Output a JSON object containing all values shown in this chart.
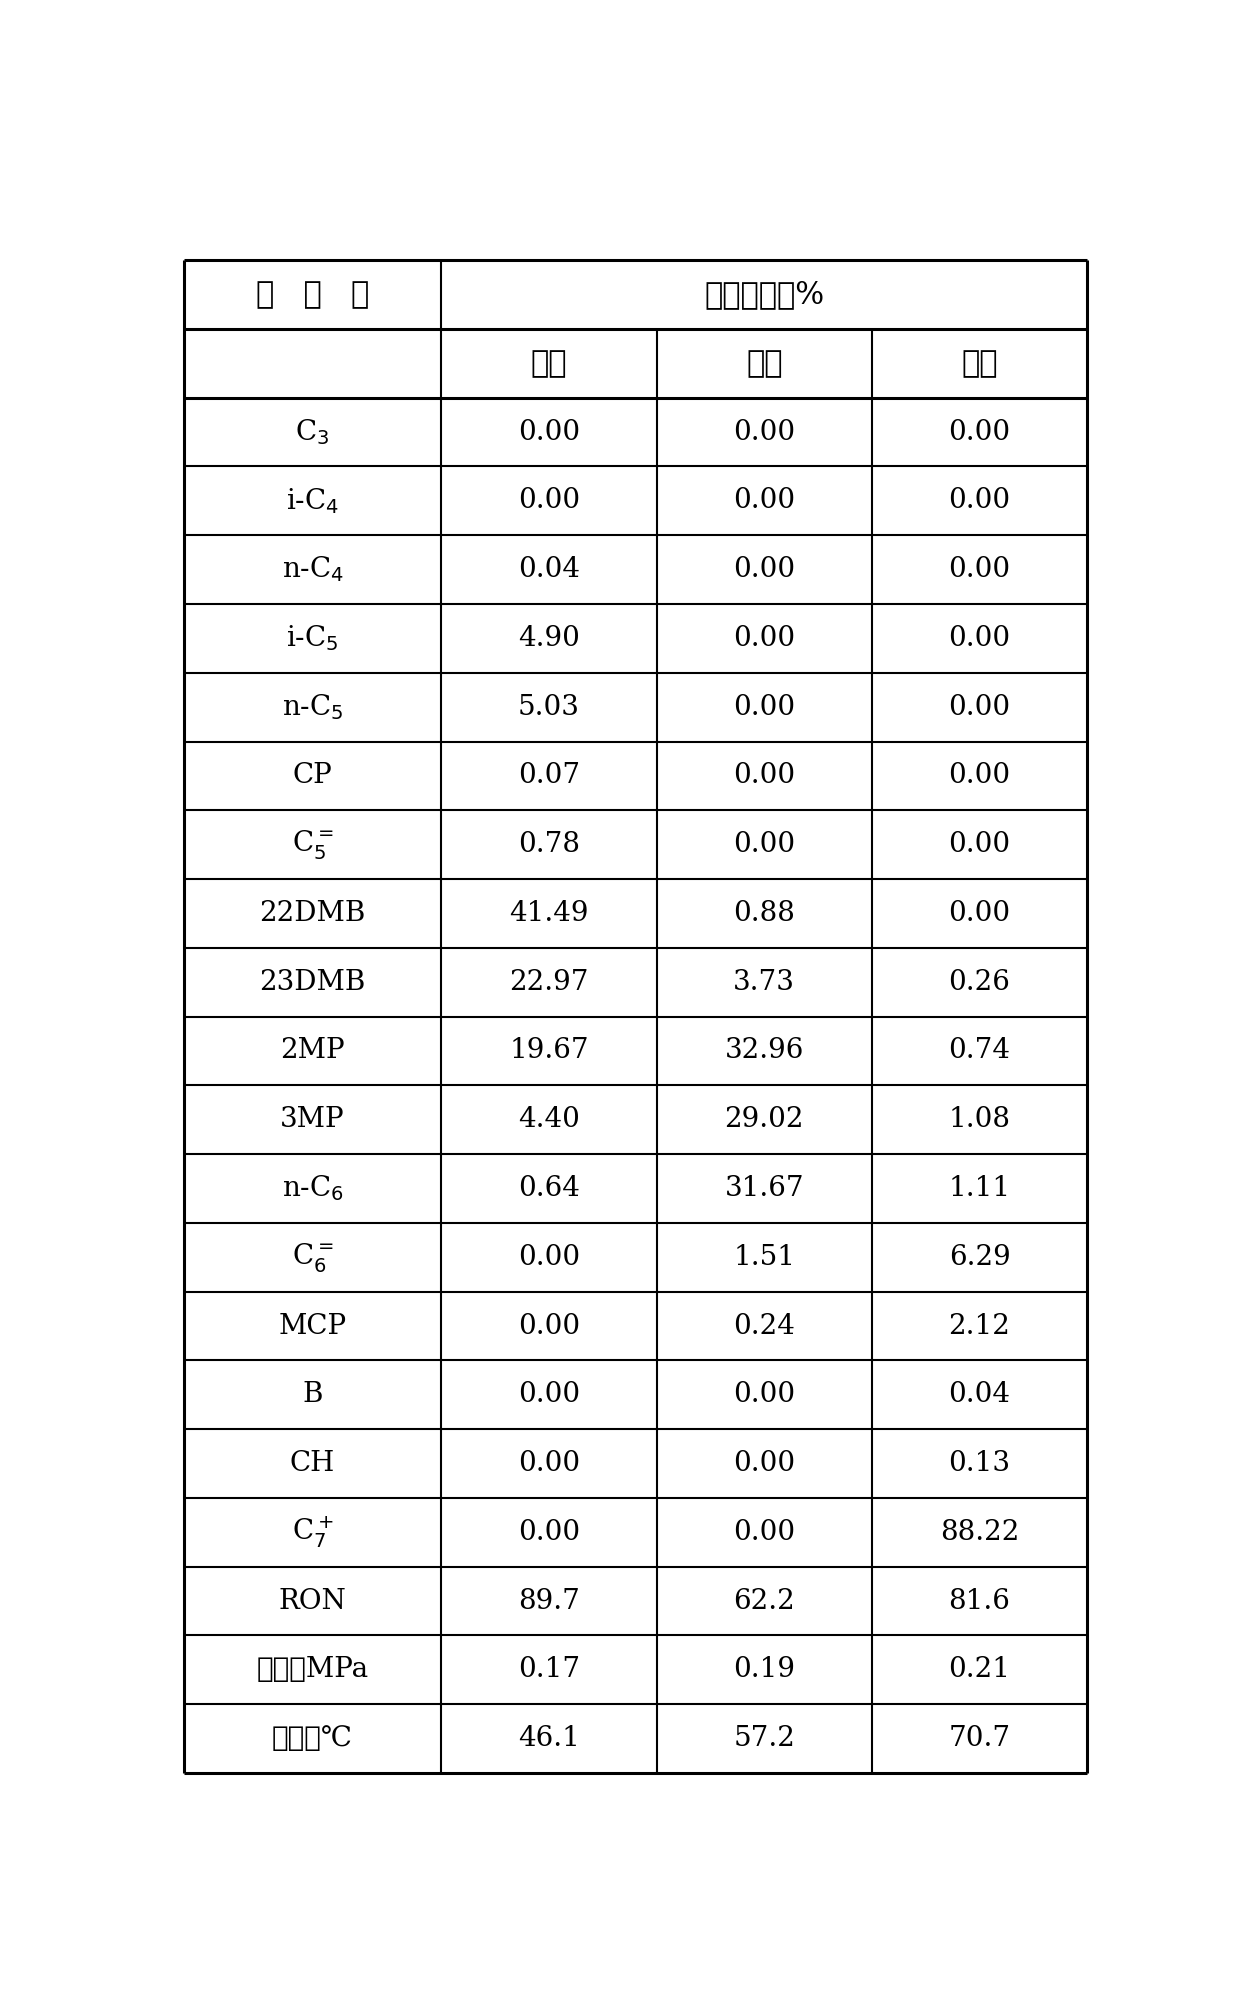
{
  "header_col": "烃   组   分",
  "header_group": "含量，质量%",
  "subheaders": [
    "塔顶",
    "侧线",
    "塔底"
  ],
  "rows": [
    {
      "label": "C_3",
      "values": [
        "0.00",
        "0.00",
        "0.00"
      ],
      "sub": "3",
      "sup": "",
      "prefix": "C",
      "suffix": ""
    },
    {
      "label": "i-C_4",
      "values": [
        "0.00",
        "0.00",
        "0.00"
      ],
      "sub": "4",
      "sup": "",
      "prefix": "i-C",
      "suffix": ""
    },
    {
      "label": "n-C_4",
      "values": [
        "0.04",
        "0.00",
        "0.00"
      ],
      "sub": "4",
      "sup": "",
      "prefix": "n-C",
      "suffix": ""
    },
    {
      "label": "i-C_5",
      "values": [
        "4.90",
        "0.00",
        "0.00"
      ],
      "sub": "5",
      "sup": "",
      "prefix": "i-C",
      "suffix": ""
    },
    {
      "label": "n-C_5",
      "values": [
        "5.03",
        "0.00",
        "0.00"
      ],
      "sub": "5",
      "sup": "",
      "prefix": "n-C",
      "suffix": ""
    },
    {
      "label": "CP",
      "values": [
        "0.07",
        "0.00",
        "0.00"
      ],
      "sub": "",
      "sup": "",
      "prefix": "CP",
      "suffix": ""
    },
    {
      "label": "C_5=",
      "values": [
        "0.78",
        "0.00",
        "0.00"
      ],
      "sub": "5",
      "sup": "=",
      "prefix": "C",
      "suffix": ""
    },
    {
      "label": "22DMB",
      "values": [
        "41.49",
        "0.88",
        "0.00"
      ],
      "sub": "",
      "sup": "",
      "prefix": "22DMB",
      "suffix": ""
    },
    {
      "label": "23DMB",
      "values": [
        "22.97",
        "3.73",
        "0.26"
      ],
      "sub": "",
      "sup": "",
      "prefix": "23DMB",
      "suffix": ""
    },
    {
      "label": "2MP",
      "values": [
        "19.67",
        "32.96",
        "0.74"
      ],
      "sub": "",
      "sup": "",
      "prefix": "2MP",
      "suffix": ""
    },
    {
      "label": "3MP",
      "values": [
        "4.40",
        "29.02",
        "1.08"
      ],
      "sub": "",
      "sup": "",
      "prefix": "3MP",
      "suffix": ""
    },
    {
      "label": "n-C_6",
      "values": [
        "0.64",
        "31.67",
        "1.11"
      ],
      "sub": "6",
      "sup": "",
      "prefix": "n-C",
      "suffix": ""
    },
    {
      "label": "C_6=",
      "values": [
        "0.00",
        "1.51",
        "6.29"
      ],
      "sub": "6",
      "sup": "=",
      "prefix": "C",
      "suffix": ""
    },
    {
      "label": "MCP",
      "values": [
        "0.00",
        "0.24",
        "2.12"
      ],
      "sub": "",
      "sup": "",
      "prefix": "MCP",
      "suffix": ""
    },
    {
      "label": "B",
      "values": [
        "0.00",
        "0.00",
        "0.04"
      ],
      "sub": "",
      "sup": "",
      "prefix": "B",
      "suffix": ""
    },
    {
      "label": "CH",
      "values": [
        "0.00",
        "0.00",
        "0.13"
      ],
      "sub": "",
      "sup": "",
      "prefix": "CH",
      "suffix": ""
    },
    {
      "label": "C_7+",
      "values": [
        "0.00",
        "0.00",
        "88.22"
      ],
      "sub": "7",
      "sup": "+",
      "prefix": "C",
      "suffix": ""
    },
    {
      "label": "RON",
      "values": [
        "89.7",
        "62.2",
        "81.6"
      ],
      "sub": "",
      "sup": "",
      "prefix": "RON",
      "suffix": ""
    },
    {
      "label": "压力，MPa",
      "values": [
        "0.17",
        "0.19",
        "0.21"
      ],
      "sub": "",
      "sup": "",
      "prefix": "压力，MPa",
      "suffix": ""
    },
    {
      "label": "温度，℃",
      "values": [
        "46.1",
        "57.2",
        "70.7"
      ],
      "sub": "",
      "sup": "",
      "prefix": "温度，℃",
      "suffix": ""
    }
  ],
  "fig_width": 12.4,
  "fig_height": 20.13,
  "background_color": "#ffffff",
  "line_color": "#000000",
  "text_color": "#000000",
  "font_size": 20,
  "header_font_size": 22
}
